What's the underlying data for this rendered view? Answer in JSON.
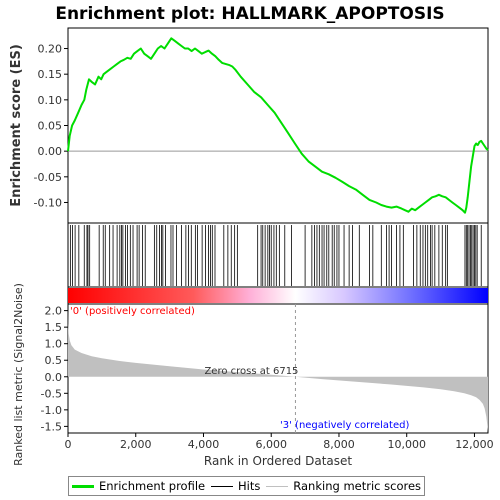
{
  "chart_data": {
    "type": "line",
    "title": "Enrichment plot: HALLMARK_APOPTOSIS",
    "es_panel": {
      "ylabel": "Enrichment score (ES)",
      "ylim": [
        -0.14,
        0.24
      ],
      "yticks": [
        -0.1,
        -0.05,
        0.0,
        0.05,
        0.1,
        0.15,
        0.2
      ],
      "ytick_labels": [
        "-0.10",
        "-0.05",
        "0.00",
        "0.05",
        "0.10",
        "0.15",
        "0.20"
      ],
      "series": [
        {
          "color": "#00dd00",
          "x": [
            0,
            50,
            120,
            200,
            300,
            400,
            480,
            540,
            620,
            700,
            800,
            900,
            980,
            1050,
            1150,
            1250,
            1350,
            1450,
            1550,
            1650,
            1750,
            1850,
            1950,
            2050,
            2150,
            2250,
            2350,
            2450,
            2550,
            2650,
            2750,
            2850,
            2950,
            3050,
            3150,
            3250,
            3350,
            3450,
            3550,
            3650,
            3750,
            3850,
            3950,
            4050,
            4150,
            4250,
            4350,
            4450,
            4550,
            4650,
            4750,
            4850,
            4950,
            5100,
            5300,
            5500,
            5700,
            5900,
            6100,
            6300,
            6500,
            6700,
            6900,
            7100,
            7300,
            7500,
            7700,
            7900,
            8100,
            8300,
            8500,
            8700,
            8900,
            9100,
            9250,
            9400,
            9550,
            9700,
            9850,
            9950,
            10050,
            10150,
            10250,
            10350,
            10450,
            10550,
            10650,
            10750,
            10850,
            10950,
            11050,
            11150,
            11250,
            11350,
            11450,
            11550,
            11650,
            11720,
            11760,
            11800,
            11850,
            11900,
            11950,
            12000,
            12050,
            12100,
            12150,
            12200,
            12250,
            12300,
            12350,
            12400
          ],
          "y": [
            0.0,
            0.03,
            0.05,
            0.06,
            0.075,
            0.09,
            0.1,
            0.12,
            0.14,
            0.135,
            0.13,
            0.145,
            0.14,
            0.15,
            0.155,
            0.16,
            0.165,
            0.17,
            0.175,
            0.178,
            0.182,
            0.18,
            0.19,
            0.195,
            0.2,
            0.19,
            0.185,
            0.18,
            0.19,
            0.2,
            0.205,
            0.2,
            0.21,
            0.22,
            0.215,
            0.21,
            0.205,
            0.2,
            0.2,
            0.195,
            0.2,
            0.195,
            0.19,
            0.193,
            0.196,
            0.19,
            0.185,
            0.178,
            0.172,
            0.17,
            0.168,
            0.165,
            0.158,
            0.145,
            0.13,
            0.115,
            0.105,
            0.09,
            0.075,
            0.055,
            0.035,
            0.015,
            -0.005,
            -0.02,
            -0.03,
            -0.04,
            -0.045,
            -0.052,
            -0.06,
            -0.068,
            -0.075,
            -0.085,
            -0.095,
            -0.1,
            -0.105,
            -0.108,
            -0.11,
            -0.108,
            -0.112,
            -0.115,
            -0.118,
            -0.112,
            -0.115,
            -0.11,
            -0.105,
            -0.1,
            -0.095,
            -0.09,
            -0.088,
            -0.085,
            -0.088,
            -0.09,
            -0.095,
            -0.1,
            -0.105,
            -0.11,
            -0.115,
            -0.12,
            -0.11,
            -0.09,
            -0.06,
            -0.03,
            -0.01,
            0.01,
            0.015,
            0.012,
            0.018,
            0.02,
            0.015,
            0.01,
            0.005,
            0.002
          ]
        }
      ]
    },
    "hits": [
      0,
      70,
      130,
      210,
      320,
      480,
      560,
      590,
      640,
      920,
      1040,
      1100,
      1230,
      1330,
      1450,
      1530,
      1580,
      1620,
      1700,
      1760,
      1840,
      1920,
      2040,
      2100,
      2200,
      2280,
      2550,
      2620,
      2700,
      2760,
      2800,
      2880,
      3040,
      3100,
      3200,
      3350,
      3480,
      3560,
      3640,
      3760,
      3820,
      3960,
      4060,
      4150,
      4210,
      4260,
      4340,
      4600,
      4720,
      4820,
      4920,
      5000,
      5600,
      5700,
      5750,
      5820,
      5900,
      5950,
      6000,
      6080,
      6150,
      6240,
      6400,
      6600,
      7000,
      7200,
      7280,
      7350,
      7420,
      7500,
      7560,
      7640,
      7700,
      7800,
      7860,
      7940,
      8000,
      8150,
      8300,
      8400,
      8600,
      8900,
      9000,
      9250,
      9400,
      9480,
      9550,
      9700,
      9800,
      9900,
      10200,
      10300,
      10400,
      10480,
      10550,
      10620,
      10700,
      10750,
      10830,
      10950,
      11050,
      11150,
      11200,
      11720,
      11760,
      11800,
      11840,
      11880,
      11920,
      11960,
      12000,
      12040,
      12080,
      12200
    ],
    "rank_panel": {
      "ylabel": "Ranked list metric (Signal2Noise)",
      "ylim": [
        -1.7,
        2.2
      ],
      "yticks": [
        -1.5,
        -1.0,
        -0.5,
        0.0,
        0.5,
        1.0,
        1.5,
        2.0
      ],
      "ytick_labels": [
        "-1.5",
        "-1.0",
        "-0.5",
        "0.0",
        "0.5",
        "1.0",
        "1.5",
        "2.0"
      ],
      "fill_color": "#c0c0c0",
      "metric_x": [
        0,
        5,
        20,
        50,
        100,
        200,
        400,
        700,
        1000,
        1500,
        2000,
        3000,
        4000,
        5000,
        6000,
        6715,
        7500,
        8500,
        9500,
        10500,
        11000,
        11400,
        11700,
        11900,
        12050,
        12150,
        12250,
        12300,
        12350,
        12400
      ],
      "metric_y": [
        2.1,
        1.6,
        1.3,
        1.1,
        0.95,
        0.82,
        0.72,
        0.62,
        0.56,
        0.48,
        0.42,
        0.32,
        0.22,
        0.14,
        0.06,
        0.0,
        -0.07,
        -0.15,
        -0.23,
        -0.32,
        -0.38,
        -0.44,
        -0.5,
        -0.56,
        -0.62,
        -0.7,
        -0.82,
        -0.95,
        -1.2,
        -1.65
      ],
      "pos_label": "'0' (positively correlated)",
      "neg_label": "'3' (negatively correlated)",
      "zero_cross_label": "Zero cross at 6715",
      "zero_cross_x": 6715
    },
    "xlabel": "Rank in Ordered Dataset",
    "xlim": [
      0,
      12400
    ],
    "xticks": [
      0,
      2000,
      4000,
      6000,
      8000,
      10000,
      12000
    ],
    "xtick_labels": [
      "0",
      "2,000",
      "4,000",
      "6,000",
      "8,000",
      "10,000",
      "12,000"
    ],
    "hit_color": "#000000",
    "heat_colors": {
      "positive": "#ff0000",
      "neutral": "#ffffff",
      "negative": "#0000ff"
    }
  },
  "legend": {
    "items": [
      {
        "label": "Enrichment profile",
        "color": "#00dd00"
      },
      {
        "label": "Hits",
        "color": "#000000"
      },
      {
        "label": "Ranking metric scores",
        "color": "#c0c0c0"
      }
    ]
  }
}
